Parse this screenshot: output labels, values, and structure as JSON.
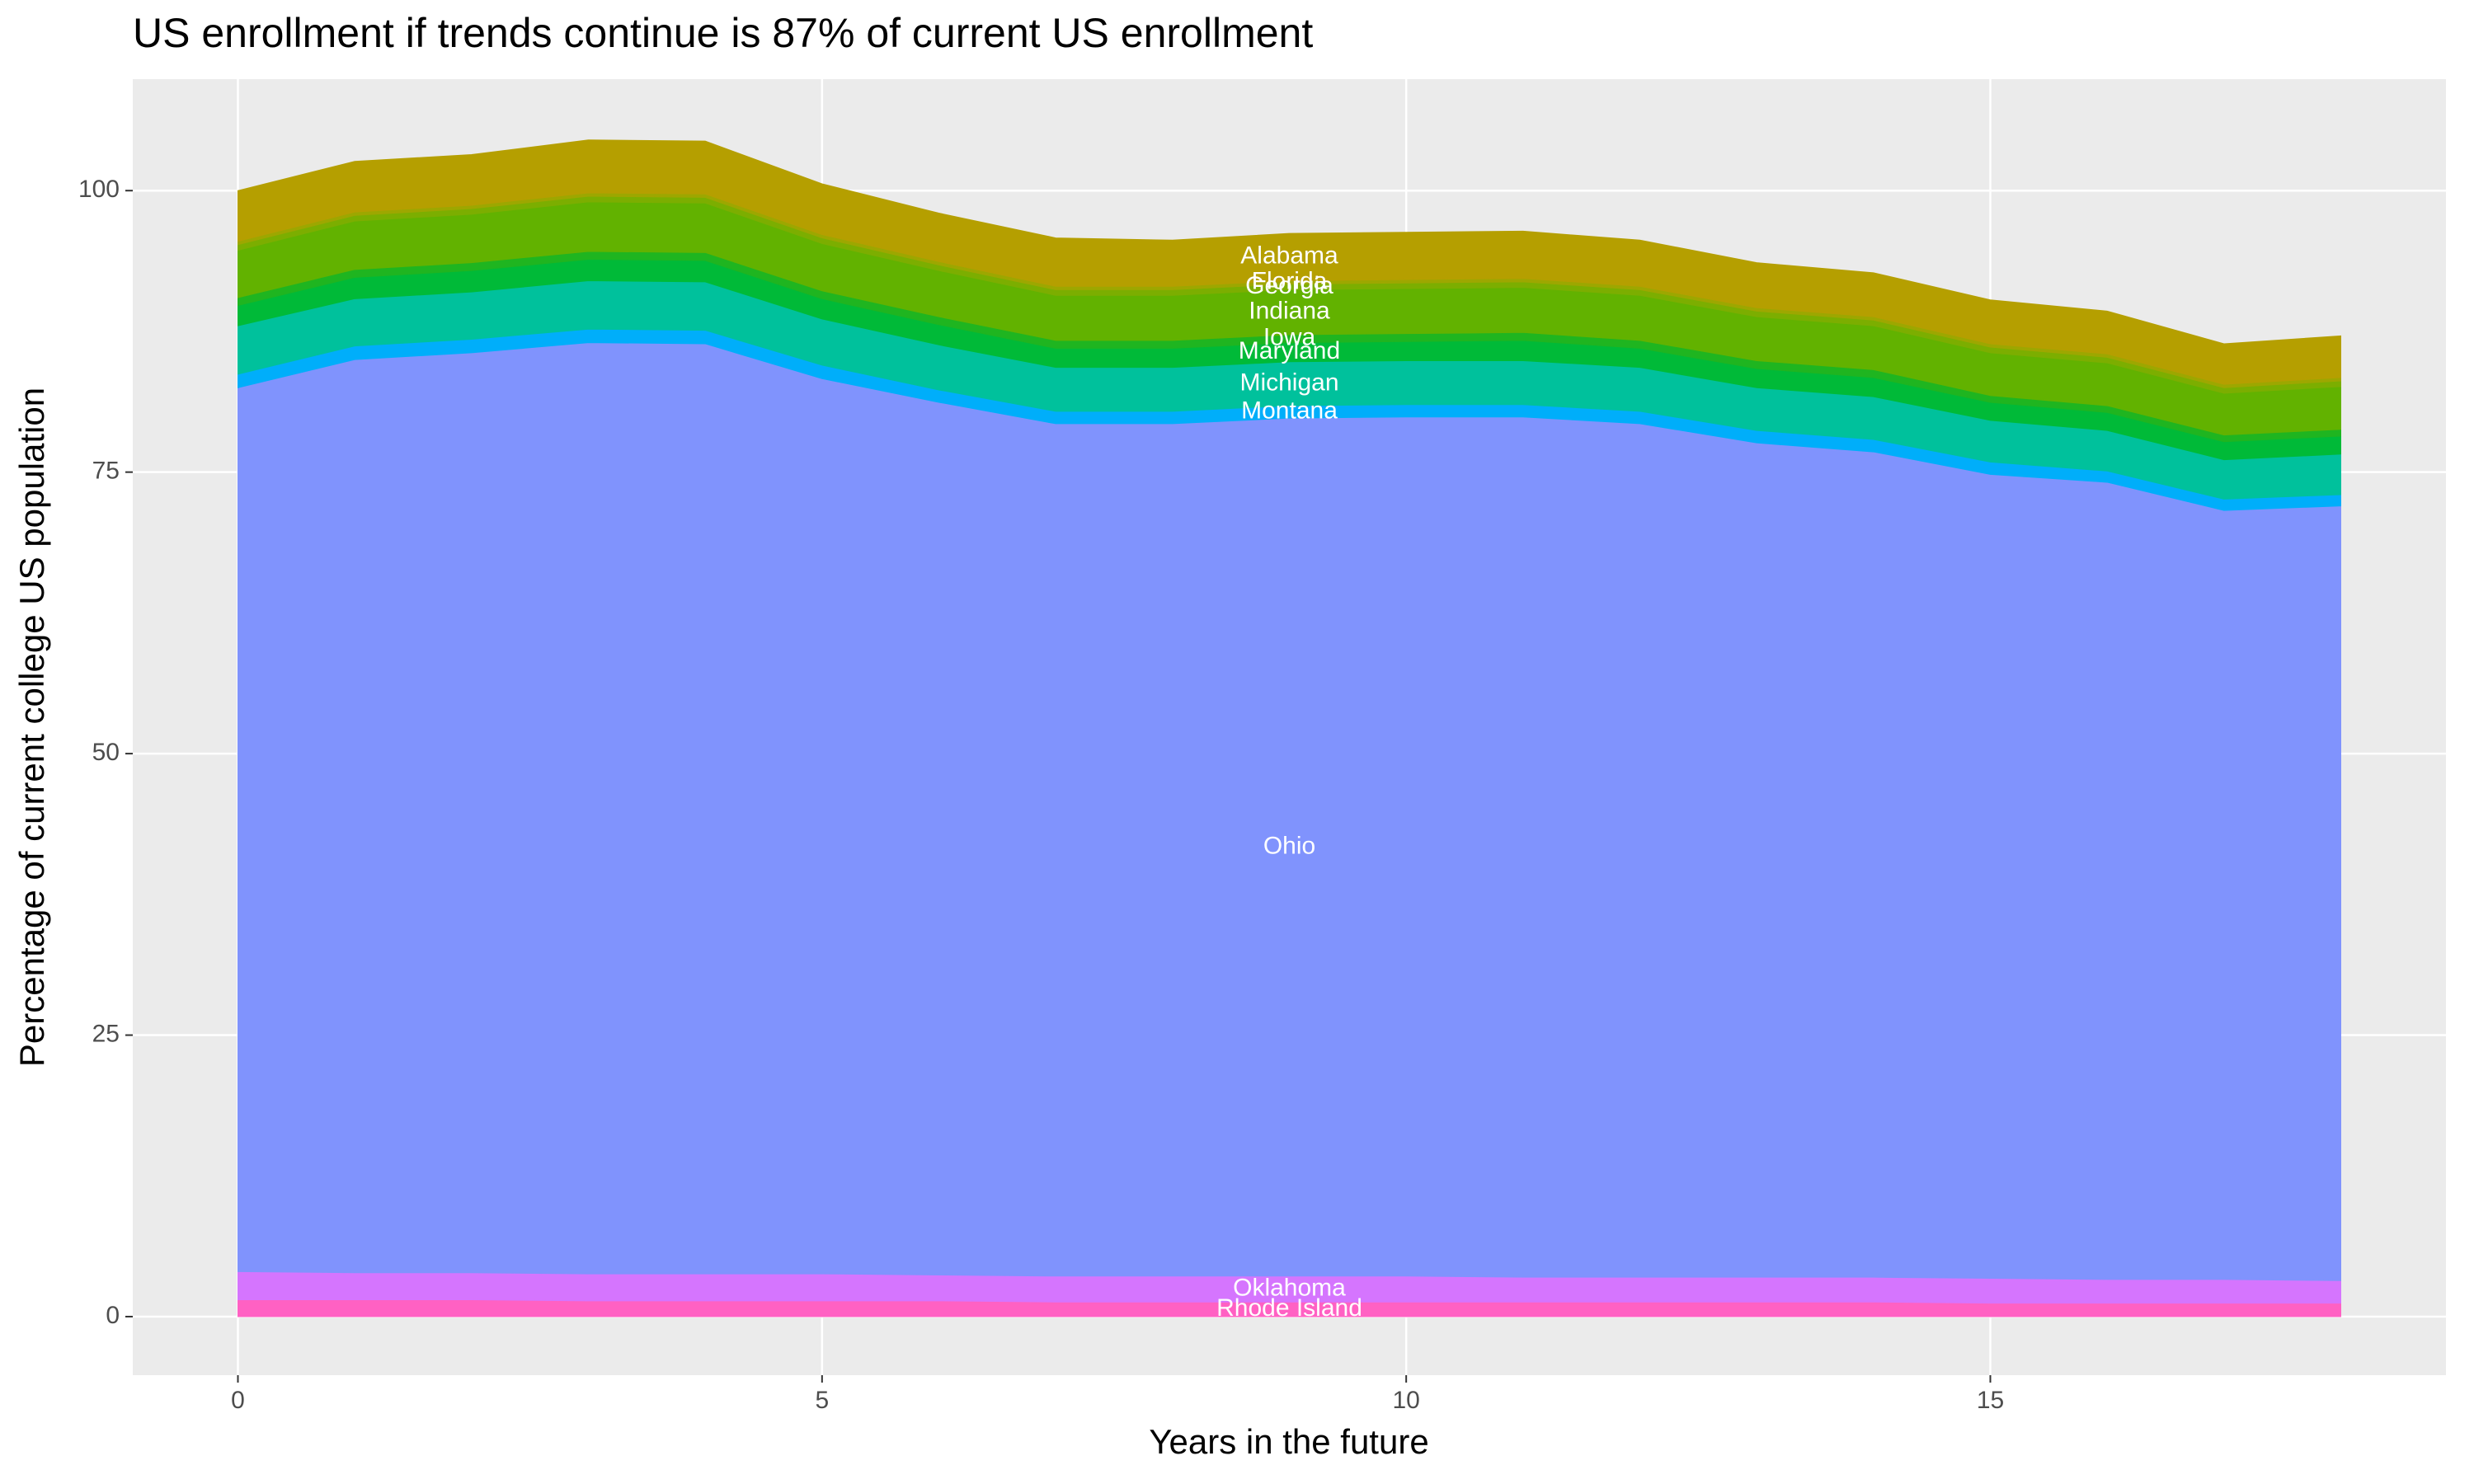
{
  "chart_data": {
    "type": "stacked_area",
    "title": "US enrollment if trends continue is 87% of current US enrollment",
    "xlabel": "Years in the future",
    "ylabel": "Percentage of current college US population",
    "x": [
      0,
      1,
      2,
      3,
      4,
      5,
      6,
      7,
      8,
      9,
      10,
      11,
      12,
      13,
      14,
      15,
      16,
      17,
      18
    ],
    "xlim": [
      -0.9,
      18.9
    ],
    "xticks": [
      0,
      5,
      10,
      15
    ],
    "ylim": [
      -5.2,
      109.9
    ],
    "yticks": [
      0,
      25,
      50,
      75,
      100
    ],
    "grid": true,
    "label_x": 9,
    "series": [
      {
        "name": "Rhode Island",
        "color": "#ff61c3",
        "values": [
          1.5,
          1.5,
          1.5,
          1.4,
          1.4,
          1.4,
          1.4,
          1.3,
          1.3,
          1.3,
          1.3,
          1.3,
          1.3,
          1.3,
          1.3,
          1.2,
          1.2,
          1.2,
          1.2
        ]
      },
      {
        "name": "Oklahoma",
        "color": "#d575fe",
        "values": [
          2.5,
          2.4,
          2.4,
          2.4,
          2.4,
          2.4,
          2.3,
          2.3,
          2.3,
          2.3,
          2.3,
          2.2,
          2.2,
          2.2,
          2.2,
          2.2,
          2.1,
          2.1,
          2.0
        ]
      },
      {
        "name": "Ohio",
        "color": "#8093fd",
        "values": [
          78.5,
          81.1,
          81.7,
          82.7,
          82.6,
          79.5,
          77.5,
          75.7,
          75.7,
          76.2,
          76.3,
          76.4,
          75.8,
          74.1,
          73.3,
          71.4,
          70.8,
          68.3,
          68.8
        ]
      },
      {
        "name": "Montana",
        "color": "#00aefa",
        "values": [
          1.2,
          1.2,
          1.2,
          1.2,
          1.2,
          1.2,
          1.1,
          1.1,
          1.1,
          1.1,
          1.1,
          1.1,
          1.1,
          1.1,
          1.1,
          1.1,
          1.0,
          1.0,
          1.0
        ]
      },
      {
        "name": "Michigan",
        "color": "#00c19c",
        "values": [
          4.3,
          4.2,
          4.2,
          4.3,
          4.3,
          4.1,
          4.0,
          3.9,
          3.9,
          3.9,
          3.9,
          3.9,
          3.9,
          3.8,
          3.8,
          3.7,
          3.6,
          3.5,
          3.6
        ]
      },
      {
        "name": "Maryland",
        "color": "#00ba38",
        "values": [
          1.8,
          1.9,
          1.9,
          1.9,
          1.9,
          1.8,
          1.8,
          1.7,
          1.7,
          1.7,
          1.7,
          1.8,
          1.7,
          1.7,
          1.7,
          1.6,
          1.6,
          1.6,
          1.6
        ]
      },
      {
        "name": "Iowa",
        "color": "#1fb520",
        "values": [
          0.7,
          0.7,
          0.7,
          0.7,
          0.7,
          0.7,
          0.7,
          0.7,
          0.7,
          0.7,
          0.7,
          0.7,
          0.7,
          0.7,
          0.7,
          0.6,
          0.6,
          0.6,
          0.6
        ]
      },
      {
        "name": "Indiana",
        "color": "#62b200",
        "values": [
          4.2,
          4.3,
          4.3,
          4.4,
          4.4,
          4.2,
          4.1,
          4.0,
          4.0,
          4.0,
          4.0,
          4.0,
          4.0,
          3.9,
          3.9,
          3.8,
          3.8,
          3.7,
          3.8
        ]
      },
      {
        "name": "Georgia",
        "color": "#7cae00",
        "values": [
          0.5,
          0.5,
          0.5,
          0.5,
          0.5,
          0.5,
          0.5,
          0.5,
          0.5,
          0.5,
          0.5,
          0.5,
          0.5,
          0.5,
          0.5,
          0.5,
          0.5,
          0.5,
          0.5
        ]
      },
      {
        "name": "Florida",
        "color": "#9da700",
        "values": [
          0.3,
          0.3,
          0.3,
          0.3,
          0.3,
          0.3,
          0.3,
          0.3,
          0.3,
          0.3,
          0.3,
          0.3,
          0.3,
          0.3,
          0.3,
          0.3,
          0.3,
          0.3,
          0.3
        ]
      },
      {
        "name": "Alabama",
        "color": "#b59f00",
        "values": [
          4.5,
          4.5,
          4.5,
          4.7,
          4.7,
          4.5,
          4.3,
          4.3,
          4.1,
          4.2,
          4.2,
          4.2,
          4.1,
          4.0,
          3.9,
          3.9,
          3.8,
          3.6,
          3.7
        ]
      }
    ]
  }
}
